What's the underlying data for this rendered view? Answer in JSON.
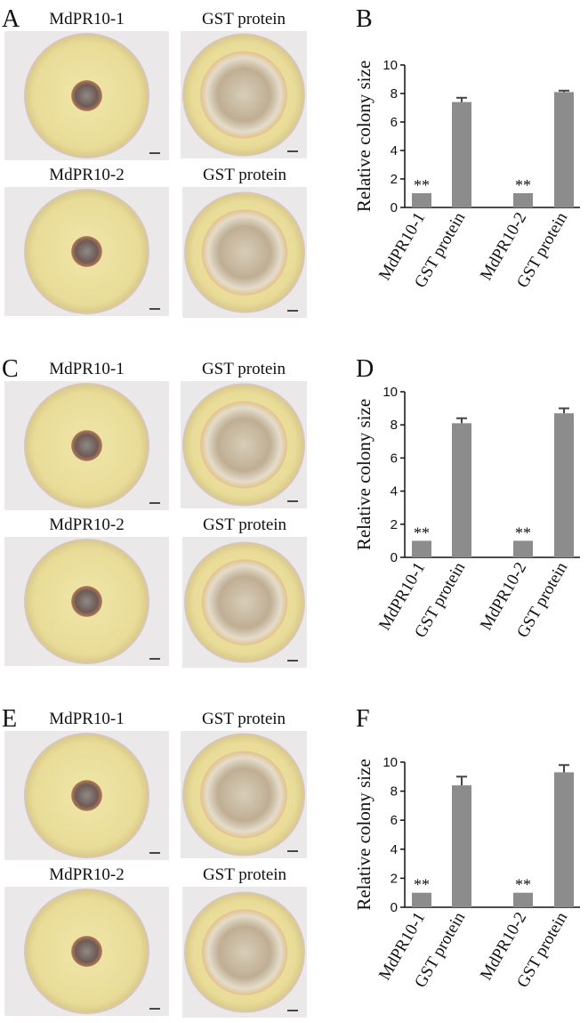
{
  "photo_panels": [
    {
      "label": "A",
      "captions": [
        "MdPR10-1",
        "GST protein",
        "MdPR10-2",
        "GST protein"
      ]
    },
    {
      "label": "C",
      "captions": [
        "MdPR10-1",
        "GST protein",
        "MdPR10-2",
        "GST protein"
      ]
    },
    {
      "label": "E",
      "captions": [
        "MdPR10-1",
        "GST protein",
        "MdPR10-2",
        "GST protein"
      ]
    }
  ],
  "chart_data": [
    {
      "type": "bar",
      "panel_label": "B",
      "ylabel": "Relative colony size",
      "categories": [
        "MdPR10-1",
        "GST protein",
        "MdPR10-2",
        "GST protein"
      ],
      "values": [
        1,
        7.4,
        1,
        8.1
      ],
      "errors": [
        0,
        0.3,
        0,
        0.1
      ],
      "significance": [
        "**",
        null,
        "**",
        null
      ],
      "color": "#8c8c8c",
      "ylim": [
        0,
        10
      ],
      "yticks": [
        0,
        2,
        4,
        6,
        8,
        10
      ]
    },
    {
      "type": "bar",
      "panel_label": "D",
      "ylabel": "Relative colony size",
      "categories": [
        "MdPR10-1",
        "GST protein",
        "MdPR10-2",
        "GST protein"
      ],
      "values": [
        1,
        8.1,
        1,
        8.7
      ],
      "errors": [
        0,
        0.3,
        0,
        0.3
      ],
      "significance": [
        "**",
        null,
        "**",
        null
      ],
      "color": "#8c8c8c",
      "ylim": [
        0,
        10
      ],
      "yticks": [
        0,
        2,
        4,
        6,
        8,
        10
      ]
    },
    {
      "type": "bar",
      "panel_label": "F",
      "ylabel": "Relative colony size",
      "categories": [
        "MdPR10-1",
        "GST protein",
        "MdPR10-2",
        "GST protein"
      ],
      "values": [
        1,
        8.4,
        1,
        9.3
      ],
      "errors": [
        0,
        0.6,
        0,
        0.5
      ],
      "significance": [
        "**",
        null,
        "**",
        null
      ],
      "color": "#8c8c8c",
      "ylim": [
        0,
        10
      ],
      "yticks": [
        0,
        2,
        4,
        6,
        8,
        10
      ]
    }
  ]
}
